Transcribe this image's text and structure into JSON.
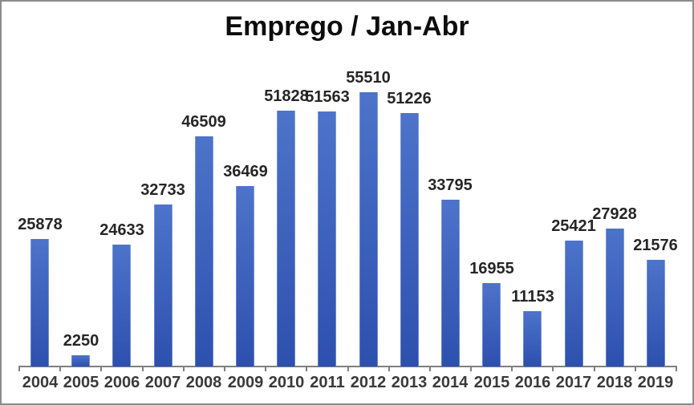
{
  "chart_data": {
    "type": "bar",
    "title": "Emprego / Jan-Abr",
    "categories": [
      "2004",
      "2005",
      "2006",
      "2007",
      "2008",
      "2009",
      "2010",
      "2011",
      "2012",
      "2013",
      "2014",
      "2015",
      "2016",
      "2017",
      "2018",
      "2019"
    ],
    "values": [
      25878,
      2250,
      24633,
      32733,
      46509,
      36469,
      51828,
      51563,
      55510,
      51226,
      33795,
      16955,
      11153,
      25421,
      27928,
      21576
    ],
    "xlabel": "",
    "ylabel": "",
    "ylim": [
      0,
      55510
    ],
    "grid": false,
    "legend": false,
    "data_labels": true,
    "colors": {
      "bar_gradient_top": "#4d73ca",
      "bar_gradient_bottom": "#2d50ae",
      "axis_line": "#7f7f7f",
      "tick_mark": "#7f7f7f",
      "value_label": "#262626",
      "axis_label": "#3a3a3a",
      "title": "#0d0d0d",
      "frame_border": "#8c8c8c",
      "background": "#ffffff"
    }
  }
}
